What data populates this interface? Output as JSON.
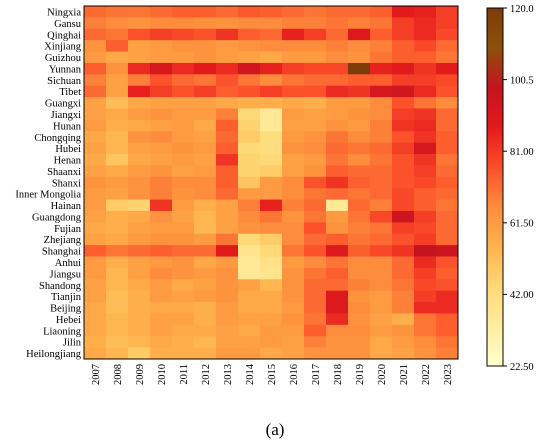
{
  "caption": "(a)",
  "chart_data": {
    "type": "heatmap",
    "title": "",
    "xlabel": "",
    "ylabel": "",
    "x": [
      "2007",
      "2008",
      "2009",
      "2010",
      "2011",
      "2012",
      "2013",
      "2014",
      "2015",
      "2016",
      "2017",
      "2018",
      "2019",
      "2020",
      "2021",
      "2022",
      "2023"
    ],
    "y": [
      "Ningxia",
      "Gansu",
      "Qinghai",
      "Xinjiang",
      "Guizhou",
      "Yunnan",
      "Sichuan",
      "Tibet",
      "Guangxi",
      "Jiangxi",
      "Hunan",
      "Chongqing",
      "Hubei",
      "Henan",
      "Shaanxi",
      "Shanxi",
      "Inner Mongolia",
      "Hainan",
      "Guangdong",
      "Fujian",
      "Zhejiang",
      "Shanghai",
      "Anhui",
      "Jiangsu",
      "Shandong",
      "Tianjin",
      "Beijing",
      "Hebei",
      "Liaoning",
      "Jilin",
      "Heilongjiang"
    ],
    "values": [
      [
        72,
        70,
        70,
        72,
        74,
        74,
        72,
        75,
        74,
        72,
        70,
        72,
        72,
        74,
        88,
        86,
        80
      ],
      [
        68,
        66,
        64,
        66,
        66,
        65,
        64,
        66,
        66,
        68,
        68,
        70,
        68,
        70,
        80,
        84,
        80
      ],
      [
        72,
        70,
        76,
        80,
        78,
        76,
        82,
        74,
        72,
        86,
        80,
        72,
        90,
        74,
        80,
        84,
        78
      ],
      [
        64,
        74,
        60,
        62,
        64,
        64,
        62,
        64,
        66,
        66,
        66,
        68,
        66,
        68,
        74,
        78,
        72
      ],
      [
        62,
        58,
        60,
        62,
        62,
        64,
        62,
        60,
        58,
        62,
        62,
        66,
        64,
        70,
        74,
        74,
        70
      ],
      [
        74,
        64,
        84,
        92,
        84,
        88,
        84,
        94,
        86,
        80,
        78,
        78,
        120,
        86,
        88,
        82,
        88
      ],
      [
        68,
        60,
        68,
        76,
        72,
        70,
        76,
        70,
        66,
        70,
        72,
        72,
        74,
        74,
        80,
        80,
        78
      ],
      [
        72,
        60,
        86,
        80,
        76,
        80,
        74,
        76,
        80,
        76,
        76,
        84,
        82,
        92,
        94,
        84,
        76
      ],
      [
        60,
        52,
        58,
        60,
        60,
        60,
        58,
        56,
        56,
        58,
        56,
        62,
        62,
        66,
        76,
        70,
        66
      ],
      [
        60,
        58,
        62,
        64,
        62,
        62,
        68,
        44,
        36,
        62,
        60,
        62,
        64,
        66,
        80,
        82,
        72
      ],
      [
        62,
        56,
        58,
        60,
        62,
        58,
        74,
        46,
        36,
        60,
        60,
        64,
        62,
        68,
        82,
        84,
        72
      ],
      [
        58,
        54,
        64,
        66,
        62,
        60,
        72,
        48,
        42,
        62,
        64,
        70,
        66,
        68,
        76,
        82,
        74
      ],
      [
        60,
        54,
        60,
        62,
        64,
        62,
        74,
        44,
        42,
        64,
        66,
        72,
        70,
        72,
        80,
        92,
        74
      ],
      [
        58,
        50,
        58,
        60,
        62,
        60,
        82,
        46,
        44,
        60,
        62,
        70,
        66,
        70,
        76,
        82,
        70
      ],
      [
        60,
        58,
        62,
        64,
        60,
        62,
        74,
        46,
        48,
        60,
        64,
        74,
        72,
        72,
        76,
        80,
        72
      ],
      [
        64,
        62,
        64,
        68,
        66,
        66,
        74,
        50,
        62,
        66,
        76,
        82,
        74,
        72,
        76,
        78,
        74
      ],
      [
        62,
        60,
        64,
        68,
        64,
        66,
        72,
        62,
        62,
        66,
        70,
        72,
        70,
        72,
        78,
        74,
        72
      ],
      [
        62,
        48,
        46,
        82,
        62,
        56,
        60,
        68,
        86,
        68,
        72,
        36,
        72,
        68,
        78,
        74,
        70
      ],
      [
        60,
        56,
        58,
        64,
        60,
        54,
        60,
        66,
        70,
        64,
        70,
        62,
        70,
        78,
        96,
        80,
        72
      ],
      [
        58,
        56,
        60,
        62,
        62,
        54,
        60,
        64,
        66,
        66,
        76,
        64,
        68,
        70,
        80,
        78,
        72
      ],
      [
        60,
        58,
        62,
        64,
        64,
        62,
        70,
        44,
        48,
        66,
        72,
        74,
        70,
        72,
        76,
        80,
        72
      ],
      [
        74,
        70,
        72,
        74,
        72,
        72,
        88,
        38,
        44,
        70,
        76,
        90,
        74,
        78,
        82,
        98,
        96
      ],
      [
        62,
        56,
        60,
        62,
        64,
        58,
        62,
        36,
        40,
        62,
        66,
        70,
        66,
        66,
        72,
        84,
        76
      ],
      [
        62,
        54,
        60,
        66,
        64,
        62,
        64,
        36,
        38,
        64,
        70,
        74,
        66,
        66,
        72,
        80,
        74
      ],
      [
        60,
        54,
        58,
        62,
        58,
        60,
        64,
        60,
        54,
        64,
        72,
        72,
        68,
        66,
        70,
        78,
        76
      ],
      [
        60,
        52,
        56,
        62,
        60,
        62,
        64,
        58,
        58,
        64,
        72,
        90,
        64,
        62,
        68,
        80,
        84
      ],
      [
        58,
        52,
        56,
        58,
        58,
        56,
        62,
        58,
        58,
        62,
        72,
        90,
        66,
        62,
        68,
        84,
        84
      ],
      [
        58,
        54,
        56,
        60,
        60,
        56,
        62,
        60,
        60,
        64,
        70,
        84,
        64,
        60,
        56,
        70,
        74
      ],
      [
        58,
        54,
        56,
        60,
        58,
        58,
        60,
        58,
        62,
        62,
        74,
        66,
        66,
        62,
        64,
        70,
        74
      ],
      [
        56,
        52,
        54,
        58,
        56,
        54,
        60,
        60,
        62,
        60,
        68,
        64,
        64,
        58,
        62,
        66,
        70
      ],
      [
        58,
        54,
        48,
        56,
        56,
        56,
        62,
        62,
        58,
        60,
        64,
        64,
        64,
        58,
        60,
        64,
        68
      ]
    ],
    "colorbar": {
      "min": 22.5,
      "max": 120.0,
      "ticks": [
        "120.0",
        "100.5",
        "81.00",
        "61.50",
        "42.00",
        "22.50"
      ],
      "tick_values": [
        120.0,
        100.5,
        81.0,
        61.5,
        42.0,
        22.5
      ]
    },
    "colormap": [
      "#ffffcc",
      "#ffeda0",
      "#fed976",
      "#feb24c",
      "#fd8d3c",
      "#fc4e2a",
      "#e31a1c",
      "#c41420",
      "#8c510a",
      "#7f3b08"
    ],
    "grid": false,
    "legend": "colorbar right"
  }
}
